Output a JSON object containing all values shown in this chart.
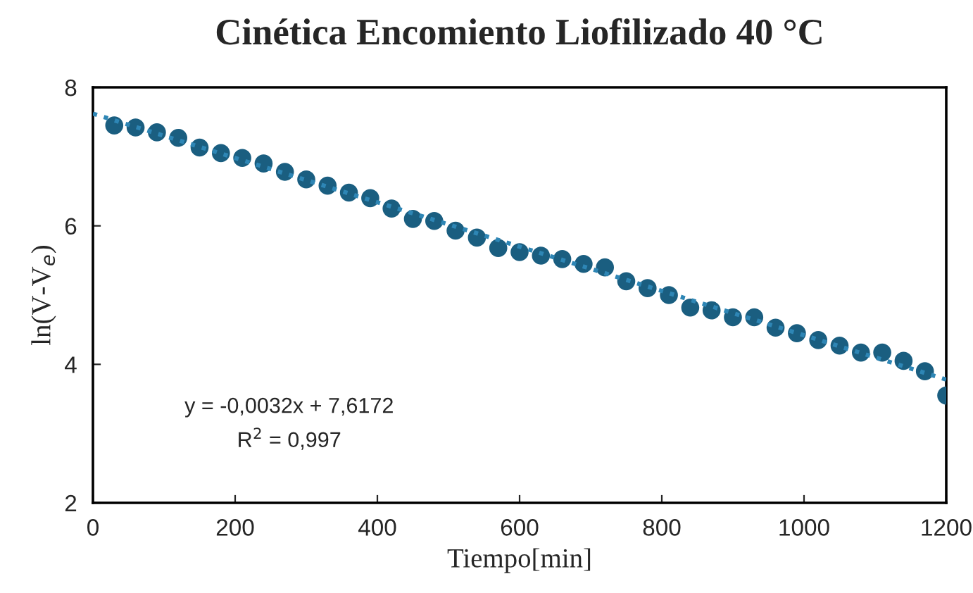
{
  "chart_data": {
    "type": "scatter",
    "title": "Cinética Encomiento Liofilizado 40 °C",
    "xlabel": "Tiempo[min]",
    "ylabel": "ln(V-V$_{e}$)",
    "xlim": [
      0,
      1200
    ],
    "xticks": [
      0,
      200,
      400,
      600,
      800,
      1000,
      1200
    ],
    "ylim": [
      2,
      8
    ],
    "yticks": [
      2,
      4,
      6,
      8
    ],
    "grid": false,
    "legend": false,
    "marker": "circle",
    "series": [
      {
        "color": "#1a5e80",
        "x": [
          30,
          60,
          90,
          120,
          150,
          180,
          210,
          240,
          270,
          300,
          330,
          360,
          390,
          420,
          450,
          480,
          510,
          540,
          570,
          600,
          630,
          660,
          690,
          720,
          750,
          780,
          810,
          840,
          870,
          900,
          930,
          960,
          990,
          1020,
          1050,
          1080,
          1110,
          1140,
          1170,
          1200
        ],
        "values": [
          7.45,
          7.42,
          7.35,
          7.27,
          7.13,
          7.05,
          6.98,
          6.9,
          6.78,
          6.67,
          6.58,
          6.48,
          6.4,
          6.25,
          6.1,
          6.07,
          5.93,
          5.83,
          5.68,
          5.62,
          5.57,
          5.52,
          5.45,
          5.4,
          5.2,
          5.1,
          5.0,
          4.82,
          4.78,
          4.68,
          4.68,
          4.53,
          4.45,
          4.35,
          4.27,
          4.17,
          4.17,
          4.05,
          3.9,
          3.55
        ]
      },
      {
        "type": "line",
        "color": "#2e86b5",
        "line_style": "dotted",
        "marker": "none",
        "x": [
          0,
          1200
        ],
        "values": [
          7.62,
          3.78
        ]
      }
    ],
    "annotations": [
      "y = -0,0032x + 7,6172",
      "R$^{2}$ = 0,997"
    ]
  }
}
